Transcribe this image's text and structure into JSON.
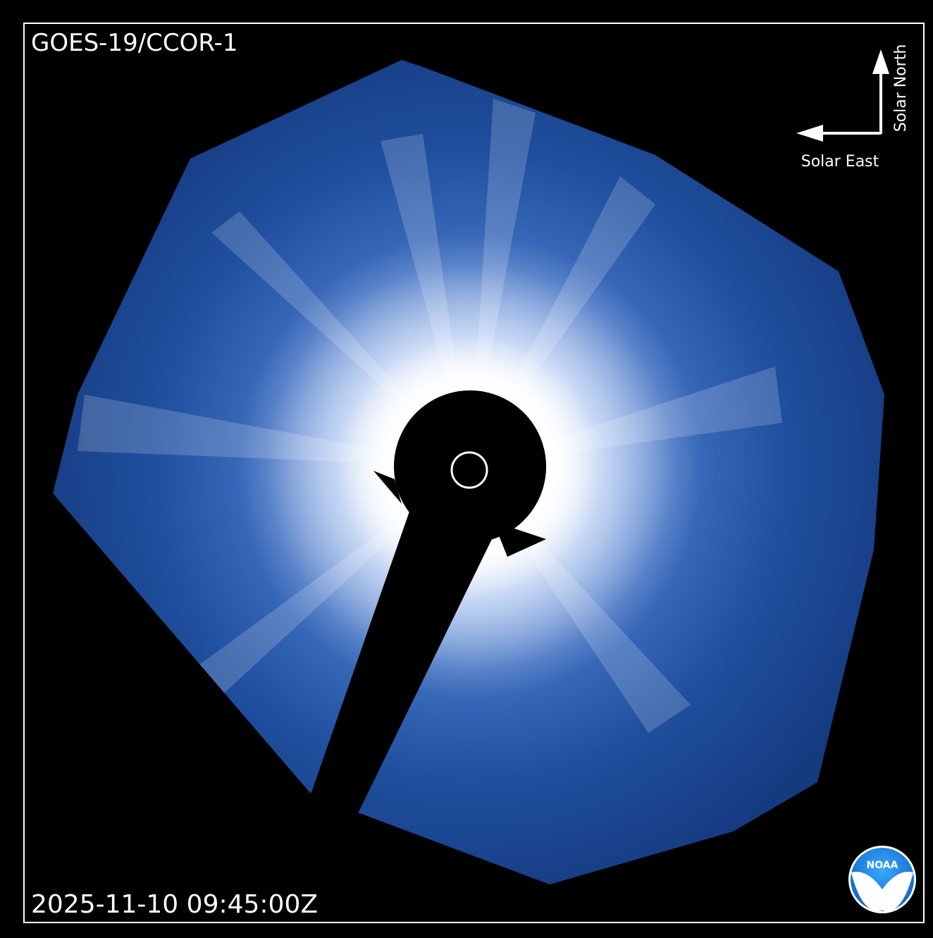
{
  "header": {
    "title": "GOES-19/CCOR-1"
  },
  "orientation": {
    "north": "Solar North",
    "east": "Solar East"
  },
  "footer": {
    "timestamp": "2025-11-10 09:45:00Z"
  },
  "logo": {
    "text": "NOAA"
  }
}
